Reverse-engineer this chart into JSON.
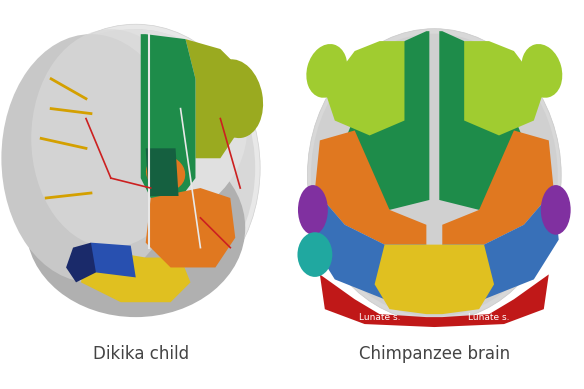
{
  "label_left": "Dikika child",
  "label_right": "Chimpanzee brain",
  "label_fontsize": 12,
  "label_color": "#444444",
  "background_color": "#ffffff",
  "fig_width": 5.84,
  "fig_height": 3.89,
  "dpi": 100,
  "lunate_left_text": "Lunate s.",
  "lunate_right_text": "Lunate s.",
  "annotation_color": "#ffffff",
  "annotation_fontsize": 6.5,
  "colors": {
    "skull_grey": "#c8c8c8",
    "skull_dark": "#a0a0a0",
    "skull_light": "#e0e0e0",
    "green_dark": "#1e8c4a",
    "green_bright": "#22a84e",
    "olive": "#9aaa20",
    "lime": "#a0cc30",
    "orange": "#e07820",
    "yellow": "#e0c020",
    "blue_dark": "#2850b0",
    "blue_teal": "#3870b8",
    "purple": "#8030a0",
    "cyan": "#20a8a0",
    "red": "#c01818",
    "teal_dark": "#156040"
  }
}
